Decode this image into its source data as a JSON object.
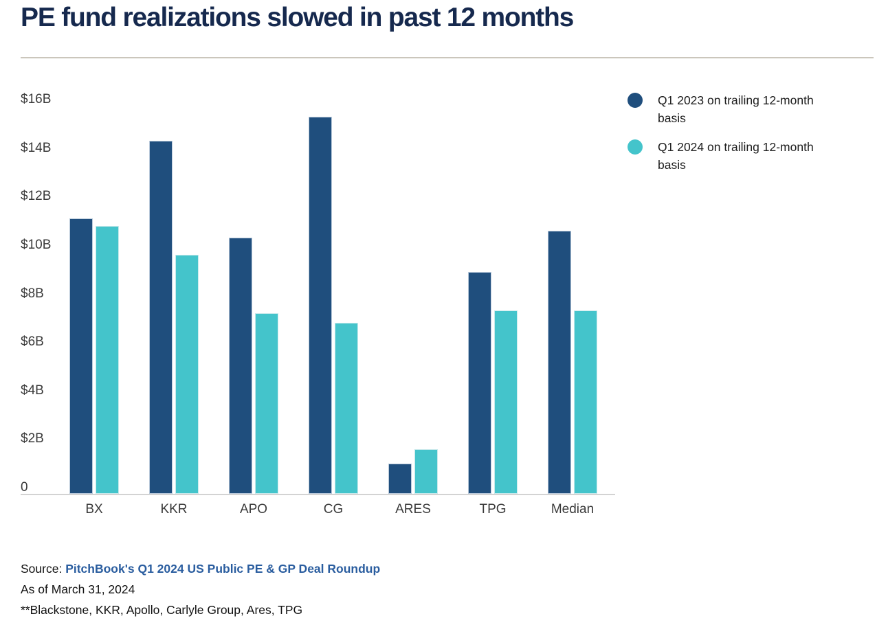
{
  "title": "PE fund realizations slowed in past 12 months",
  "legend": {
    "items": [
      {
        "label": "Q1 2023 on trailing 12-month basis",
        "color": "#1F4E7D"
      },
      {
        "label": "Q1 2024 on trailing 12-month basis",
        "color": "#44C4CB"
      }
    ]
  },
  "chart_data": {
    "type": "bar",
    "title": "PE fund realizations slowed in past 12 months",
    "unit": "USD billions",
    "categories": [
      "BX",
      "KKR",
      "APO",
      "CG",
      "ARES",
      "TPG",
      "Median"
    ],
    "series": [
      {
        "name": "Q1 2023 on trailing 12-month basis",
        "color": "#1F4E7D",
        "values": [
          11.1,
          14.3,
          10.3,
          15.3,
          1.0,
          8.9,
          10.6
        ]
      },
      {
        "name": "Q1 2024 on trailing 12-month basis",
        "color": "#44C4CB",
        "values": [
          10.8,
          9.6,
          7.2,
          6.8,
          1.6,
          7.3,
          7.3
        ]
      }
    ],
    "xlabel": "",
    "ylabel": "",
    "ylim": [
      0,
      16
    ],
    "y_ticks": [
      "$16B",
      "$14B",
      "$12B",
      "$10B",
      "$8B",
      "$6B",
      "$4B",
      "$2B",
      "0"
    ],
    "y_tick_values": [
      16,
      14,
      12,
      10,
      8,
      6,
      4,
      2,
      0
    ],
    "grid": false,
    "legend_position": "right"
  },
  "footer": {
    "source_prefix": "Source: ",
    "source_link": "PitchBook's Q1 2024 US Public PE & GP Deal Roundup",
    "as_of": "As of March 31, 2024",
    "note": "**Blackstone, KKR, Apollo, Carlyle Group, Ares, TPG"
  },
  "colors": {
    "title": "#16294E",
    "link": "#2A5D9F",
    "series_q1_2023": "#1F4E7D",
    "series_q1_2024": "#44C4CB"
  }
}
